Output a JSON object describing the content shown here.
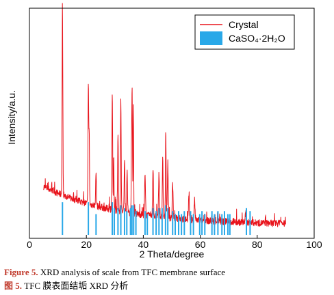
{
  "chart_data": {
    "type": "line",
    "xlabel": "2 Theta/degree",
    "ylabel": "Intensity/a.u.",
    "xlim": [
      0,
      100
    ],
    "xticks": [
      "0",
      "20",
      "40",
      "60",
      "80",
      "100"
    ],
    "grid": false,
    "legend": {
      "placement": "top-right",
      "entries": [
        {
          "label": "Crystal",
          "color": "#e8141c",
          "marker": "line"
        },
        {
          "label": "CaSO₄·2H₂O",
          "color": "#29a8e8",
          "marker": "patch"
        }
      ]
    },
    "series": [
      {
        "name": "Crystal",
        "color": "#e8141c",
        "x_range": [
          5,
          90
        ],
        "baseline_start": 75,
        "baseline_end": 18,
        "noise": 10,
        "peaks": [
          {
            "x": 11.6,
            "y": 338,
            "w": 0.25
          },
          {
            "x": 20.7,
            "y": 225,
            "w": 0.25
          },
          {
            "x": 21.0,
            "y": 150,
            "w": 0.2
          },
          {
            "x": 23.4,
            "y": 95,
            "w": 0.3
          },
          {
            "x": 29.1,
            "y": 212,
            "w": 0.25
          },
          {
            "x": 29.6,
            "y": 120,
            "w": 0.2
          },
          {
            "x": 31.1,
            "y": 150,
            "w": 0.25
          },
          {
            "x": 32.1,
            "y": 207,
            "w": 0.25
          },
          {
            "x": 33.4,
            "y": 120,
            "w": 0.25
          },
          {
            "x": 34.3,
            "y": 95,
            "w": 0.25
          },
          {
            "x": 35.9,
            "y": 150,
            "w": 0.25
          },
          {
            "x": 36.1,
            "y": 182,
            "w": 0.2
          },
          {
            "x": 36.5,
            "y": 200,
            "w": 0.2
          },
          {
            "x": 40.6,
            "y": 90,
            "w": 0.3
          },
          {
            "x": 43.4,
            "y": 100,
            "w": 0.3
          },
          {
            "x": 45.5,
            "y": 95,
            "w": 0.3
          },
          {
            "x": 46.8,
            "y": 120,
            "w": 0.25
          },
          {
            "x": 47.9,
            "y": 150,
            "w": 0.25
          },
          {
            "x": 48.6,
            "y": 110,
            "w": 0.3
          },
          {
            "x": 50.3,
            "y": 80,
            "w": 0.3
          },
          {
            "x": 56.0,
            "y": 60,
            "w": 0.3
          },
          {
            "x": 58.0,
            "y": 55,
            "w": 0.3
          },
          {
            "x": 76.0,
            "y": 35,
            "w": 0.4
          },
          {
            "x": 88.0,
            "y": 25,
            "w": 0.4
          }
        ]
      },
      {
        "name": "CaSO₄·2H₂O",
        "type": "stick",
        "color": "#29a8e8",
        "x": [
          11.6,
          20.7,
          23.4,
          29.1,
          29.8,
          31.1,
          32.1,
          33.4,
          34.2,
          35.5,
          36.0,
          36.6,
          37.4,
          40.6,
          41.4,
          43.4,
          44.5,
          45.5,
          46.6,
          47.8,
          48.6,
          50.3,
          51.2,
          52.4,
          53.4,
          54.4,
          56.6,
          57.6,
          59.8,
          60.6,
          61.6,
          64.1,
          65.0,
          66.2,
          67.6,
          68.5,
          69.7,
          70.4,
          76.2,
          77.5
        ],
        "y": [
          22,
          22,
          14,
          22,
          18,
          18,
          20,
          18,
          16,
          18,
          20,
          20,
          16,
          16,
          14,
          18,
          16,
          18,
          18,
          20,
          18,
          16,
          14,
          16,
          14,
          16,
          16,
          14,
          14,
          16,
          14,
          16,
          14,
          16,
          14,
          16,
          14,
          14,
          18,
          16
        ]
      }
    ]
  },
  "caption": {
    "en_label": "Figure 5.",
    "en_text": " XRD analysis of scale from TFC membrane surface",
    "zh_label": "图 5.",
    "zh_text": " TFC 膜表面结垢 XRD 分析"
  }
}
